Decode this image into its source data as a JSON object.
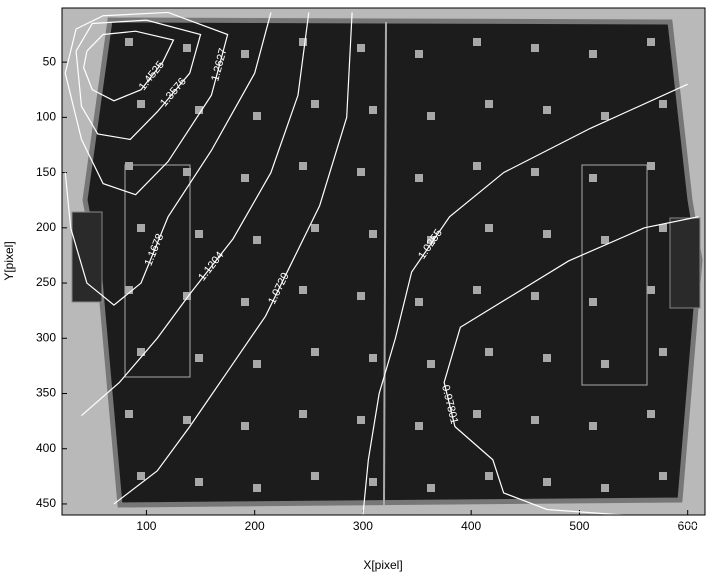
{
  "chart_data": {
    "type": "contour",
    "x_label": "X[pixel]",
    "y_label": "Y[pixel]",
    "xlim": [
      22,
      616
    ],
    "xticks": [
      100,
      200,
      300,
      400,
      500,
      600
    ],
    "ylim": [
      1,
      460
    ],
    "yticks": [
      50,
      100,
      150,
      200,
      250,
      300,
      350,
      400,
      450
    ],
    "y_reversed": true,
    "color": "#ffffff",
    "contours": [
      {
        "level": 1.4525,
        "x": [
          45,
          60,
          90,
          125,
          115,
          95,
          70,
          50,
          42,
          45
        ],
        "y": [
          40,
          25,
          22,
          30,
          50,
          75,
          85,
          75,
          55,
          40
        ]
      },
      {
        "level": 1.3576,
        "x": [
          35,
          50,
          100,
          150,
          140,
          110,
          85,
          55,
          40,
          35
        ],
        "y": [
          40,
          15,
          12,
          25,
          60,
          95,
          120,
          115,
          90,
          40
        ]
      },
      {
        "level": 1.2627,
        "x": [
          25,
          35,
          60,
          120,
          175,
          160,
          120,
          90,
          60,
          40,
          25
        ],
        "y": [
          60,
          20,
          8,
          5,
          25,
          80,
          140,
          170,
          160,
          120,
          60
        ]
      },
      {
        "level": 1.1678,
        "x": [
          215,
          200,
          160,
          120,
          95,
          70,
          45,
          30,
          25
        ],
        "y": [
          5,
          60,
          130,
          190,
          250,
          270,
          250,
          200,
          150
        ]
      },
      {
        "level": 1.1204,
        "x": [
          250,
          240,
          215,
          180,
          140,
          110,
          75,
          40
        ],
        "y": [
          5,
          80,
          150,
          210,
          260,
          300,
          340,
          370
        ]
      },
      {
        "level": 1.0729,
        "x": [
          290,
          285,
          260,
          235,
          210,
          175,
          140,
          110,
          70
        ],
        "y": [
          5,
          100,
          180,
          230,
          280,
          330,
          380,
          420,
          450
        ]
      },
      {
        "level": 1.0255,
        "x": [
          600,
          510,
          430,
          380,
          345,
          330,
          315,
          305,
          300
        ],
        "y": [
          70,
          110,
          150,
          190,
          240,
          300,
          350,
          410,
          460
        ]
      },
      {
        "level": 0.97801,
        "x": [
          610,
          560,
          490,
          440,
          390,
          375,
          385,
          420,
          430,
          470,
          540,
          610
        ],
        "y": [
          190,
          200,
          230,
          260,
          290,
          340,
          380,
          410,
          440,
          455,
          460,
          470
        ]
      }
    ]
  }
}
